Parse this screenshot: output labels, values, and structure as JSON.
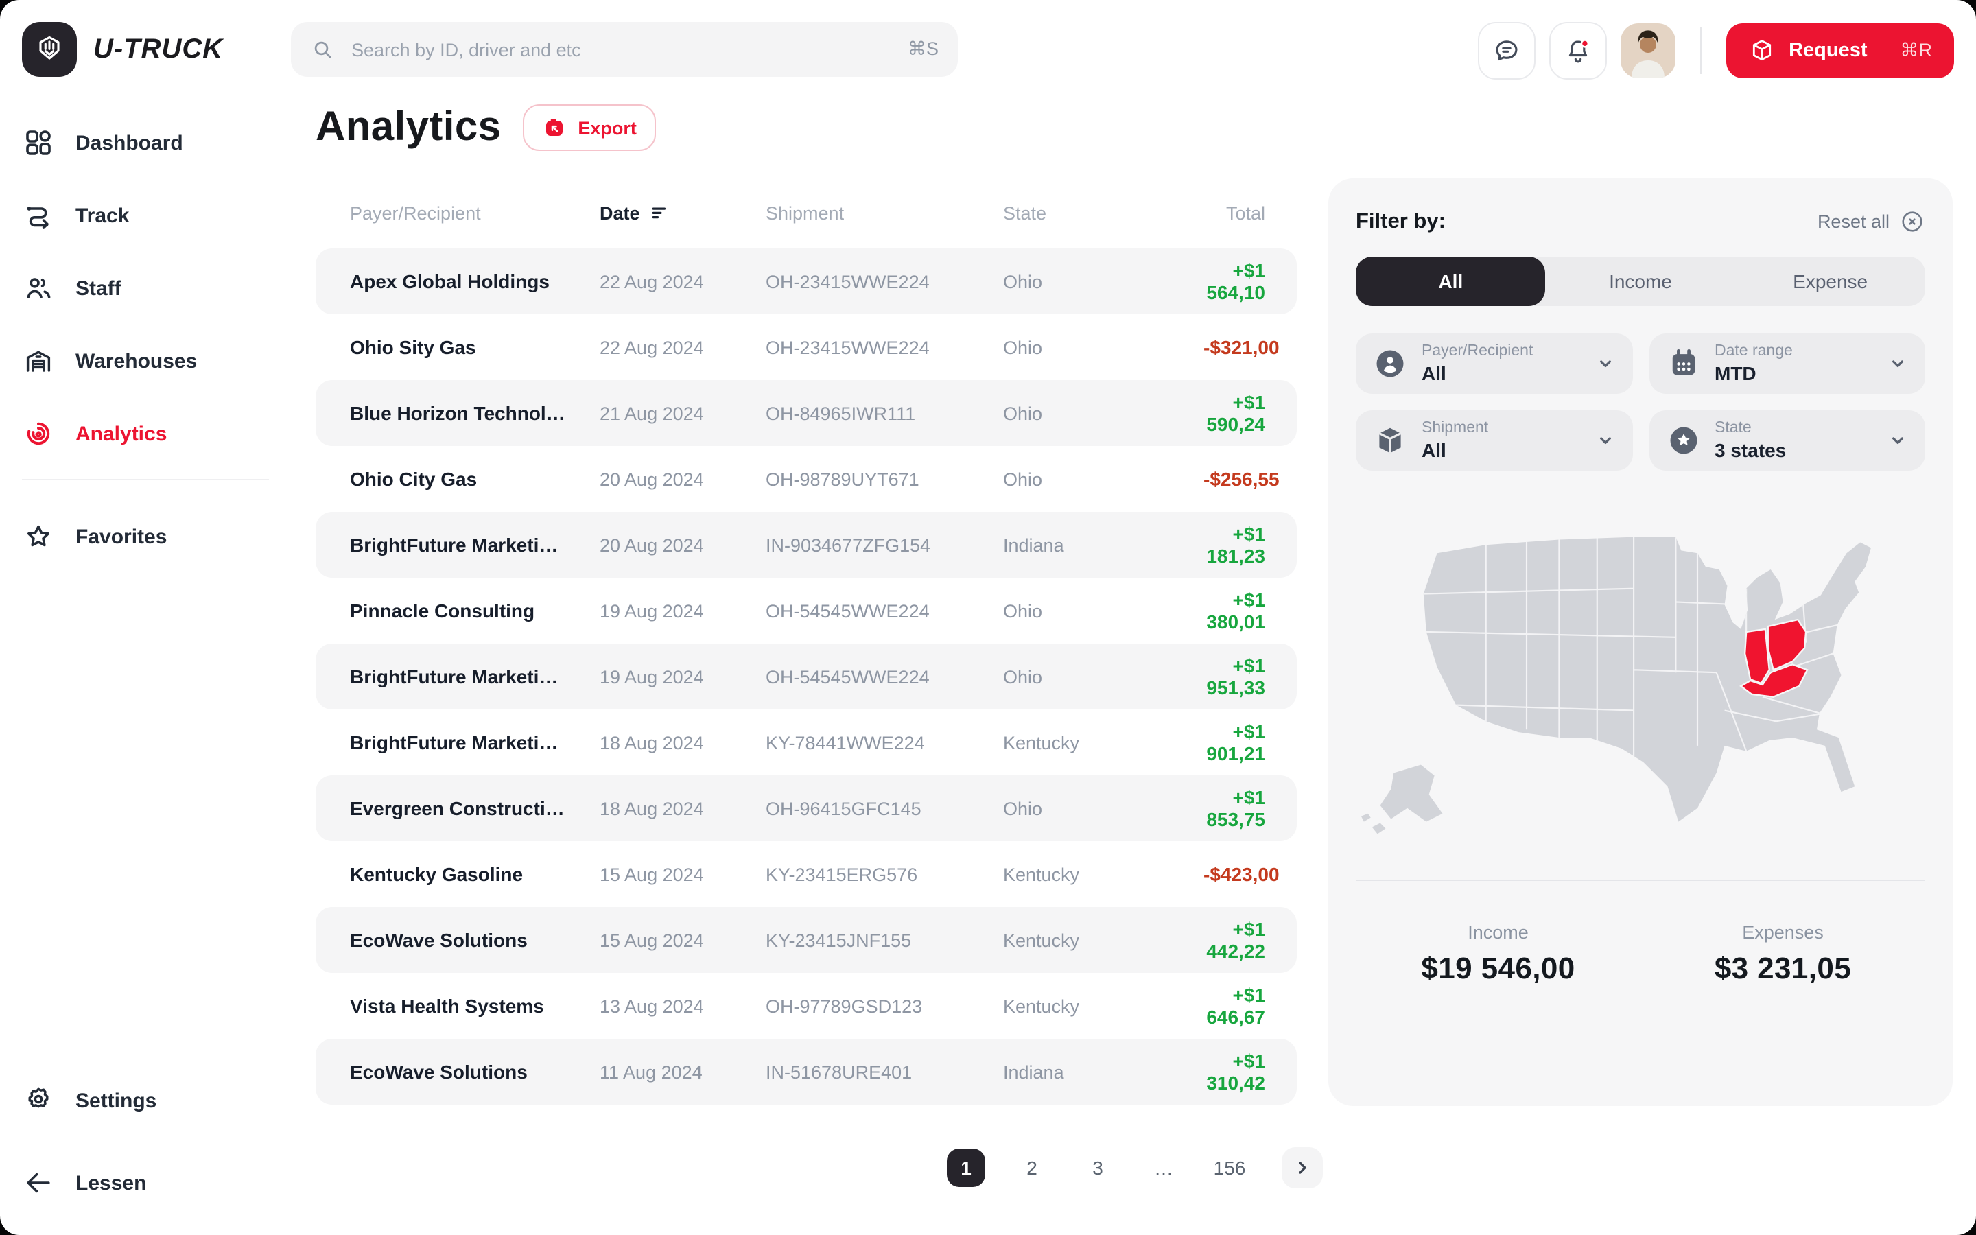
{
  "colors": {
    "accent": "#EC1431",
    "map_red": "#F0142F",
    "positive": "#17A63E",
    "negative": "#C43A1E",
    "dark": "#26242B"
  },
  "topbar": {
    "brand": "U-TRUCK",
    "search_placeholder": "Search by ID, driver and etc",
    "search_shortcut": "⌘S",
    "icons": [
      "search-icon",
      "chat-icon",
      "bell-icon",
      "package-icon"
    ],
    "request_label": "Request",
    "request_shortcut": "⌘R"
  },
  "sidebar": {
    "items": [
      {
        "label": "Dashboard",
        "icon": "dashboard-grid-icon",
        "active": false
      },
      {
        "label": "Track",
        "icon": "route-icon",
        "active": false
      },
      {
        "label": "Staff",
        "icon": "people-icon",
        "active": false
      },
      {
        "label": "Warehouses",
        "icon": "warehouse-icon",
        "active": false
      },
      {
        "label": "Analytics",
        "icon": "radar-icon",
        "active": true
      },
      {
        "label": "Favorites",
        "icon": "star-icon",
        "active": false,
        "after_divider": true
      }
    ],
    "settings_label": "Settings",
    "collapse_label": "Lessen"
  },
  "page": {
    "title": "Analytics",
    "export_label": "Export",
    "export_icon": "export-icon"
  },
  "table": {
    "columns": {
      "payer": "Payer/Recipient",
      "date": "Date",
      "shipment": "Shipment",
      "state": "State",
      "total": "Total"
    },
    "sorted_by": "date",
    "rows": [
      {
        "payer": "Apex Global Holdings",
        "date": "22 Aug 2024",
        "shipment": "OH-23415WWE224",
        "state": "Ohio",
        "total": "+$1 564,10",
        "direction": "income"
      },
      {
        "payer": "Ohio Sity Gas",
        "date": "22 Aug 2024",
        "shipment": "OH-23415WWE224",
        "state": "Ohio",
        "total": "-$321,00",
        "direction": "expense"
      },
      {
        "payer": "Blue Horizon Technol…",
        "date": "21 Aug 2024",
        "shipment": "OH-84965IWR111",
        "state": "Ohio",
        "total": "+$1 590,24",
        "direction": "income"
      },
      {
        "payer": "Ohio City Gas",
        "date": "20 Aug 2024",
        "shipment": "OH-98789UYT671",
        "state": "Ohio",
        "total": "-$256,55",
        "direction": "expense"
      },
      {
        "payer": "BrightFuture Marketi…",
        "date": "20 Aug 2024",
        "shipment": "IN-9034677ZFG154",
        "state": "Indiana",
        "total": "+$1 181,23",
        "direction": "income"
      },
      {
        "payer": "Pinnacle Consulting",
        "date": "19 Aug 2024",
        "shipment": "OH-54545WWE224",
        "state": "Ohio",
        "total": "+$1 380,01",
        "direction": "income"
      },
      {
        "payer": "BrightFuture Marketi…",
        "date": "19 Aug 2024",
        "shipment": "OH-54545WWE224",
        "state": "Ohio",
        "total": "+$1 951,33",
        "direction": "income"
      },
      {
        "payer": "BrightFuture Marketi…",
        "date": "18 Aug 2024",
        "shipment": "KY-78441WWE224",
        "state": "Kentucky",
        "total": "+$1 901,21",
        "direction": "income"
      },
      {
        "payer": "Evergreen Constructi…",
        "date": "18 Aug 2024",
        "shipment": "OH-96415GFC145",
        "state": "Ohio",
        "total": "+$1 853,75",
        "direction": "income"
      },
      {
        "payer": "Kentucky Gasoline",
        "date": "15 Aug 2024",
        "shipment": "KY-23415ERG576",
        "state": "Kentucky",
        "total": "-$423,00",
        "direction": "expense"
      },
      {
        "payer": "EcoWave Solutions",
        "date": "15 Aug 2024",
        "shipment": "KY-23415JNF155",
        "state": "Kentucky",
        "total": "+$1 442,22",
        "direction": "income"
      },
      {
        "payer": "Vista Health Systems",
        "date": "13 Aug 2024",
        "shipment": "OH-97789GSD123",
        "state": "Kentucky",
        "total": "+$1 646,67",
        "direction": "income"
      },
      {
        "payer": "EcoWave Solutions",
        "date": "11 Aug 2024",
        "shipment": "IN-51678URE401",
        "state": "Indiana",
        "total": "+$1 310,42",
        "direction": "income"
      }
    ]
  },
  "filters": {
    "title": "Filter by:",
    "reset_label": "Reset all",
    "tabs": [
      {
        "label": "All",
        "active": true
      },
      {
        "label": "Income",
        "active": false
      },
      {
        "label": "Expense",
        "active": false
      }
    ],
    "dropdowns": [
      {
        "label": "Payer/Recipient",
        "value": "All",
        "icon": "person-circle-icon"
      },
      {
        "label": "Date range",
        "value": "MTD",
        "icon": "calendar-icon"
      },
      {
        "label": "Shipment",
        "value": "All",
        "icon": "box-icon"
      },
      {
        "label": "State",
        "value": "3 states",
        "icon": "state-pin-icon"
      }
    ],
    "map": {
      "highlighted_states": [
        "Indiana",
        "Ohio",
        "Kentucky"
      ]
    },
    "summary": {
      "income_label": "Income",
      "income_value": "$19 546,00",
      "expenses_label": "Expenses",
      "expenses_value": "$3 231,05"
    }
  },
  "pagination": {
    "pages": [
      "1",
      "2",
      "3",
      "…",
      "156"
    ],
    "active": "1"
  }
}
